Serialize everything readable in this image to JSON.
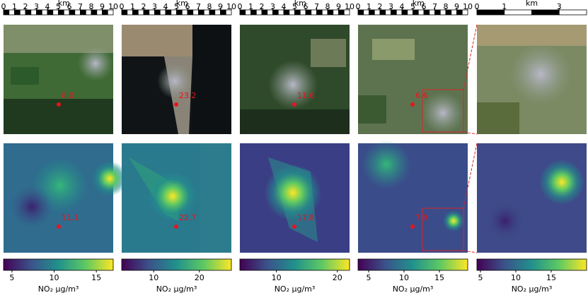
{
  "panels": [
    {
      "scalebar": {
        "ticks": [
          0,
          1,
          2,
          3,
          4,
          5,
          6,
          7,
          8,
          9,
          10
        ],
        "unit": "km",
        "range": [
          0,
          10
        ]
      },
      "satellite_value": "8.0",
      "no2_value": "11.1",
      "colorbar": {
        "clim": [
          4,
          17
        ],
        "ticks": [
          5,
          10,
          15
        ]
      }
    },
    {
      "scalebar": {
        "ticks": [
          0,
          1,
          2,
          3,
          4,
          5,
          6,
          7,
          8,
          9,
          10
        ],
        "unit": "km",
        "range": [
          0,
          10
        ]
      },
      "satellite_value": "23.2",
      "no2_value": "22.7",
      "colorbar": {
        "clim": [
          3,
          27
        ],
        "ticks": [
          10,
          20
        ]
      }
    },
    {
      "scalebar": {
        "ticks": [
          0,
          1,
          2,
          3,
          4,
          5,
          6,
          7,
          8,
          9,
          10
        ],
        "unit": "km",
        "range": [
          0,
          10
        ]
      },
      "satellite_value": "11.6",
      "no2_value": "17.8",
      "colorbar": {
        "clim": [
          4,
          22
        ],
        "ticks": [
          10,
          20
        ]
      }
    },
    {
      "scalebar": {
        "ticks": [
          0,
          1,
          2,
          3,
          4,
          5,
          6,
          7,
          8,
          9,
          10
        ],
        "unit": "km",
        "range": [
          0,
          10
        ]
      },
      "satellite_value": "6.6",
      "no2_value": "7.9",
      "colorbar": {
        "clim": [
          3.5,
          19
        ],
        "ticks": [
          5,
          10,
          15
        ]
      }
    },
    {
      "scalebar": {
        "ticks": [
          0,
          1,
          3
        ],
        "unit": "km",
        "range": [
          0,
          4
        ]
      },
      "colorbar": {
        "clim": [
          4.5,
          20
        ],
        "ticks": [
          5,
          10,
          15
        ]
      }
    }
  ],
  "colorbar_label": "NO₂ μg/m³"
}
